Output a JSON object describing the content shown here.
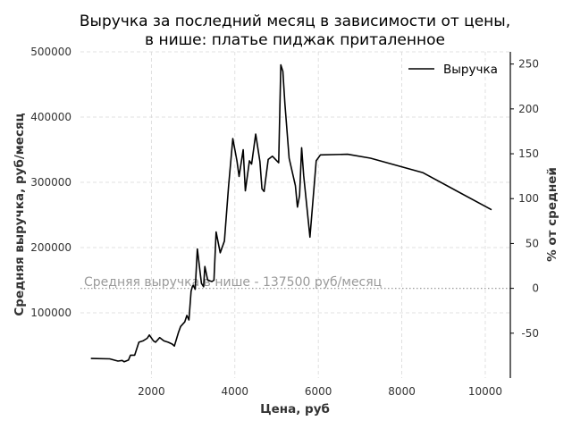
{
  "chart_data": {
    "type": "line",
    "title": [
      "Выручка за последний месяц в зависимости от цены,",
      "в нише: платье пиджак приталенное"
    ],
    "xlabel": "Цена, руб",
    "ylabel": "Средняя выручка, руб/месяц",
    "y2label": "% от средней",
    "xlim": [
      300,
      10600
    ],
    "ylim": [
      0,
      500000
    ],
    "y2lim": [
      -100,
      263.6
    ],
    "xticks": [
      2000,
      4000,
      6000,
      8000,
      10000
    ],
    "yticks": [
      100000,
      200000,
      300000,
      400000,
      500000
    ],
    "y2ticks": [
      -50,
      0,
      50,
      100,
      150,
      200,
      250
    ],
    "grid": true,
    "legend_position": "top-right",
    "series": [
      {
        "name": "Выручка",
        "color": "#000000",
        "x": [
          550,
          1000,
          1200,
          1300,
          1350,
          1450,
          1500,
          1600,
          1700,
          1800,
          1900,
          1950,
          2050,
          2100,
          2200,
          2300,
          2400,
          2500,
          2550,
          2650,
          2700,
          2800,
          2850,
          2900,
          2950,
          2980,
          3000,
          3050,
          3100,
          3200,
          3250,
          3280,
          3350,
          3450,
          3500,
          3550,
          3650,
          3750,
          3850,
          3950,
          4050,
          4100,
          4200,
          4250,
          4350,
          4400,
          4500,
          4600,
          4650,
          4700,
          4800,
          4900,
          5050,
          5100,
          5150,
          5200,
          5300,
          5450,
          5500,
          5550,
          5600,
          5650,
          5800,
          5950,
          6050,
          6700,
          7250,
          8500,
          10150
        ],
        "y": [
          30000,
          29500,
          26000,
          27000,
          25000,
          27500,
          35000,
          35000,
          55000,
          57000,
          61000,
          66000,
          57000,
          55000,
          62000,
          57000,
          55000,
          52000,
          49000,
          70000,
          79000,
          86000,
          96000,
          89000,
          133000,
          140000,
          142000,
          136000,
          198000,
          145000,
          140000,
          171000,
          150000,
          148000,
          150000,
          224000,
          192000,
          210000,
          295000,
          367000,
          333000,
          309000,
          350000,
          287000,
          333000,
          328000,
          374000,
          332000,
          290000,
          286000,
          335000,
          340000,
          330000,
          480000,
          470000,
          420000,
          337000,
          295000,
          262000,
          280000,
          353000,
          310000,
          216000,
          333000,
          342000,
          343000,
          337000,
          315000,
          258000
        ]
      }
    ],
    "annotations": [
      {
        "text": "Средняя выручка в нише - 137500 руб/месяц",
        "y": 137500
      }
    ]
  }
}
